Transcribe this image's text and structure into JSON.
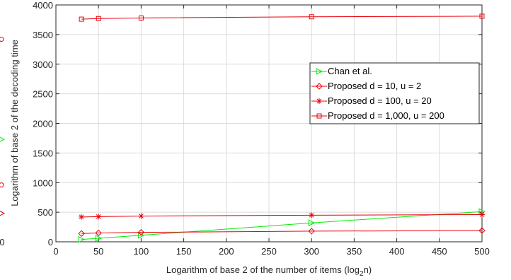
{
  "chart_data": {
    "type": "line",
    "xlabel": {
      "main": "Logarithm of base 2 of the number of items (log",
      "sub": "2",
      "tail": "n)"
    },
    "ylabel": "Logarithm of base 2 of the decoding time",
    "xlim": [
      0,
      500
    ],
    "ylim": [
      0,
      4000
    ],
    "x_ticks": [
      0,
      50,
      100,
      150,
      200,
      250,
      300,
      350,
      400,
      450,
      500
    ],
    "y_ticks": [
      0,
      500,
      1000,
      1500,
      2000,
      2500,
      3000,
      3500,
      4000
    ],
    "grid": true,
    "legend_position": "right",
    "series": [
      {
        "name": "Chan et al.",
        "marker": "triangle-right",
        "color": "#00ee00",
        "x": [
          30,
          50,
          100,
          300,
          500
        ],
        "y": [
          40,
          60,
          110,
          320,
          510
        ]
      },
      {
        "name": "Proposed d = 10, u = 2",
        "marker": "diamond",
        "color": "#e8000b",
        "x": [
          30,
          50,
          100,
          300,
          500
        ],
        "y": [
          140,
          150,
          160,
          180,
          190
        ]
      },
      {
        "name": "Proposed d = 100, u = 20",
        "marker": "asterisk",
        "color": "#e8000b",
        "x": [
          30,
          50,
          100,
          300,
          500
        ],
        "y": [
          420,
          425,
          435,
          450,
          460
        ]
      },
      {
        "name": "Proposed  d = 1,000, u = 200",
        "marker": "square",
        "color": "#e8000b",
        "x": [
          30,
          50,
          100,
          300,
          500
        ],
        "y": [
          3760,
          3770,
          3780,
          3800,
          3810
        ]
      }
    ]
  },
  "cutoff_left": {
    "tick_label": "0",
    "markers": [
      {
        "marker": "circle",
        "color": "#e8000b",
        "y_value": 3420
      },
      {
        "marker": "triangle-right",
        "color": "#00ee00",
        "y_value": 1730
      },
      {
        "marker": "circle",
        "color": "#e8000b",
        "y_value": 960
      },
      {
        "marker": "triangle-right",
        "color": "#e8000b",
        "y_value": 480
      }
    ]
  }
}
